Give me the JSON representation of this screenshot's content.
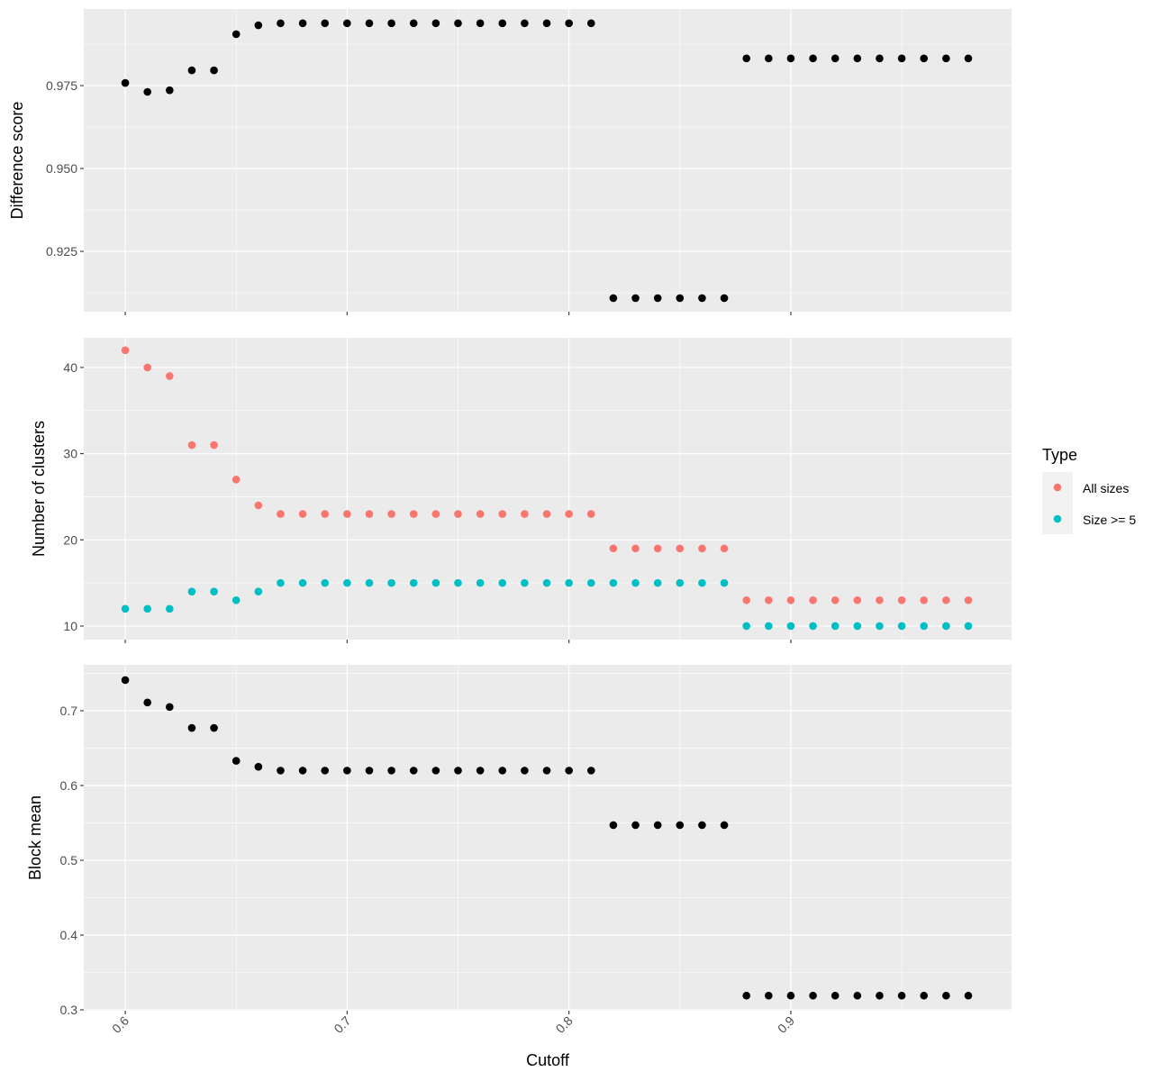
{
  "chart_data": [
    {
      "type": "scatter",
      "title": "",
      "xlabel": "Cutoff",
      "ylabel": "Difference score",
      "xlim": [
        0.5813,
        0.9995
      ],
      "ylim": [
        0.9068,
        0.9981
      ],
      "yticks": [
        "0.925",
        "0.950",
        "0.975"
      ],
      "ytick_values": [
        0.925,
        0.95,
        0.975
      ],
      "grid": true,
      "series": [
        {
          "name": "Difference score",
          "color": "#000000",
          "x": [
            0.6,
            0.61,
            0.62,
            0.63,
            0.64,
            0.65,
            0.66,
            0.67,
            0.68,
            0.69,
            0.7,
            0.71,
            0.72,
            0.73,
            0.74,
            0.75,
            0.76,
            0.77,
            0.78,
            0.79,
            0.8,
            0.81,
            0.82,
            0.83,
            0.84,
            0.85,
            0.86,
            0.87,
            0.88,
            0.89,
            0.9,
            0.91,
            0.92,
            0.93,
            0.94,
            0.95,
            0.96,
            0.97,
            0.98
          ],
          "y": [
            0.9758,
            0.9731,
            0.9736,
            0.9796,
            0.9796,
            0.9905,
            0.9932,
            0.9938,
            0.9938,
            0.9938,
            0.9938,
            0.9938,
            0.9938,
            0.9938,
            0.9938,
            0.9938,
            0.9938,
            0.9938,
            0.9938,
            0.9938,
            0.9938,
            0.9938,
            0.9109,
            0.9109,
            0.9109,
            0.9109,
            0.9109,
            0.9109,
            0.9832,
            0.9832,
            0.9832,
            0.9832,
            0.9832,
            0.9832,
            0.9832,
            0.9832,
            0.9832,
            0.9832,
            0.9832
          ]
        }
      ]
    },
    {
      "type": "scatter",
      "title": "",
      "xlabel": "Cutoff",
      "ylabel": "Number of clusters",
      "xlim": [
        0.5813,
        0.9995
      ],
      "ylim": [
        8.43,
        43.44
      ],
      "yticks": [
        "10",
        "20",
        "30",
        "40"
      ],
      "ytick_values": [
        10,
        20,
        30,
        40
      ],
      "grid": true,
      "legend": {
        "title": "Type",
        "placement": "right",
        "entries": [
          "All sizes",
          "Size >= 5"
        ]
      },
      "series": [
        {
          "name": "All sizes",
          "color": "#F8766D",
          "x": [
            0.6,
            0.61,
            0.62,
            0.63,
            0.64,
            0.65,
            0.66,
            0.67,
            0.68,
            0.69,
            0.7,
            0.71,
            0.72,
            0.73,
            0.74,
            0.75,
            0.76,
            0.77,
            0.78,
            0.79,
            0.8,
            0.81,
            0.82,
            0.83,
            0.84,
            0.85,
            0.86,
            0.87,
            0.88,
            0.89,
            0.9,
            0.91,
            0.92,
            0.93,
            0.94,
            0.95,
            0.96,
            0.97,
            0.98
          ],
          "y": [
            42,
            40,
            39,
            31,
            31,
            27,
            24,
            23,
            23,
            23,
            23,
            23,
            23,
            23,
            23,
            23,
            23,
            23,
            23,
            23,
            23,
            23,
            19,
            19,
            19,
            19,
            19,
            19,
            13,
            13,
            13,
            13,
            13,
            13,
            13,
            13,
            13,
            13,
            13
          ]
        },
        {
          "name": "Size >= 5",
          "color": "#00BFC4",
          "x": [
            0.6,
            0.61,
            0.62,
            0.63,
            0.64,
            0.65,
            0.66,
            0.67,
            0.68,
            0.69,
            0.7,
            0.71,
            0.72,
            0.73,
            0.74,
            0.75,
            0.76,
            0.77,
            0.78,
            0.79,
            0.8,
            0.81,
            0.82,
            0.83,
            0.84,
            0.85,
            0.86,
            0.87,
            0.88,
            0.89,
            0.9,
            0.91,
            0.92,
            0.93,
            0.94,
            0.95,
            0.96,
            0.97,
            0.98
          ],
          "y": [
            12,
            12,
            12,
            14,
            14,
            13,
            14,
            15,
            15,
            15,
            15,
            15,
            15,
            15,
            15,
            15,
            15,
            15,
            15,
            15,
            15,
            15,
            15,
            15,
            15,
            15,
            15,
            15,
            10,
            10,
            10,
            10,
            10,
            10,
            10,
            10,
            10,
            10,
            10
          ]
        }
      ]
    },
    {
      "type": "scatter",
      "title": "",
      "xlabel": "Cutoff",
      "ylabel": "Block mean",
      "xlim": [
        0.5813,
        0.9995
      ],
      "ylim": [
        0.2988,
        0.7614
      ],
      "yticks": [
        "0.3",
        "0.4",
        "0.5",
        "0.6",
        "0.7"
      ],
      "ytick_values": [
        0.3,
        0.4,
        0.5,
        0.6,
        0.7
      ],
      "xticks": [
        "0.6",
        "0.7",
        "0.8",
        "0.9"
      ],
      "xtick_values": [
        0.6,
        0.7,
        0.8,
        0.9
      ],
      "grid": true,
      "series": [
        {
          "name": "Block mean",
          "color": "#000000",
          "x": [
            0.6,
            0.61,
            0.62,
            0.63,
            0.64,
            0.65,
            0.66,
            0.67,
            0.68,
            0.69,
            0.7,
            0.71,
            0.72,
            0.73,
            0.74,
            0.75,
            0.76,
            0.77,
            0.78,
            0.79,
            0.8,
            0.81,
            0.82,
            0.83,
            0.84,
            0.85,
            0.86,
            0.87,
            0.88,
            0.89,
            0.9,
            0.91,
            0.92,
            0.93,
            0.94,
            0.95,
            0.96,
            0.97,
            0.98
          ],
          "y": [
            0.741,
            0.711,
            0.705,
            0.677,
            0.677,
            0.633,
            0.625,
            0.62,
            0.62,
            0.62,
            0.62,
            0.62,
            0.62,
            0.62,
            0.62,
            0.62,
            0.62,
            0.62,
            0.62,
            0.62,
            0.62,
            0.62,
            0.547,
            0.547,
            0.547,
            0.547,
            0.547,
            0.547,
            0.319,
            0.319,
            0.319,
            0.319,
            0.319,
            0.319,
            0.319,
            0.319,
            0.319,
            0.319,
            0.319
          ]
        }
      ]
    }
  ],
  "shared": {
    "xlabel": "Cutoff",
    "xticks": [
      "0.6",
      "0.7",
      "0.8",
      "0.9"
    ],
    "xtick_values": [
      0.6,
      0.7,
      0.8,
      0.9
    ],
    "legend_title": "Type"
  }
}
